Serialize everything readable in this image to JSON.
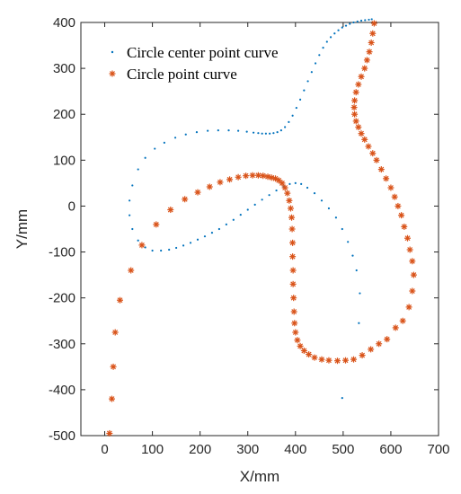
{
  "chart_data": {
    "type": "scatter",
    "xlabel": "X/mm",
    "ylabel": "Y/mm",
    "xlim": [
      -50,
      700
    ],
    "ylim": [
      -500,
      400
    ],
    "xticks": [
      0,
      100,
      200,
      300,
      400,
      500,
      600,
      700
    ],
    "yticks": [
      -500,
      -400,
      -300,
      -200,
      -100,
      0,
      100,
      200,
      300,
      400
    ],
    "grid": false,
    "legend_position": "top-left",
    "series": [
      {
        "name": "Circle center point curve",
        "color": "#0072BD",
        "marker": "dot",
        "points": [
          [
            498,
            -418
          ],
          [
            533,
            -255
          ],
          [
            535,
            -190
          ],
          [
            528,
            -140
          ],
          [
            520,
            -108
          ],
          [
            510,
            -78
          ],
          [
            498,
            -50
          ],
          [
            485,
            -25
          ],
          [
            470,
            -5
          ],
          [
            455,
            12
          ],
          [
            440,
            28
          ],
          [
            425,
            40
          ],
          [
            412,
            48
          ],
          [
            400,
            50
          ],
          [
            388,
            48
          ],
          [
            375,
            43
          ],
          [
            360,
            34
          ],
          [
            345,
            24
          ],
          [
            330,
            14
          ],
          [
            315,
            3
          ],
          [
            300,
            -8
          ],
          [
            285,
            -19
          ],
          [
            270,
            -30
          ],
          [
            255,
            -40
          ],
          [
            240,
            -50
          ],
          [
            225,
            -58
          ],
          [
            210,
            -66
          ],
          [
            195,
            -73
          ],
          [
            180,
            -80
          ],
          [
            165,
            -86
          ],
          [
            150,
            -91
          ],
          [
            135,
            -95
          ],
          [
            118,
            -97
          ],
          [
            100,
            -97
          ],
          [
            85,
            -90
          ],
          [
            70,
            -75
          ],
          [
            58,
            -50
          ],
          [
            52,
            -20
          ],
          [
            52,
            12
          ],
          [
            58,
            45
          ],
          [
            70,
            80
          ],
          [
            85,
            105
          ],
          [
            105,
            125
          ],
          [
            125,
            138
          ],
          [
            148,
            149
          ],
          [
            170,
            156
          ],
          [
            193,
            161
          ],
          [
            216,
            164
          ],
          [
            238,
            165
          ],
          [
            260,
            165
          ],
          [
            280,
            164
          ],
          [
            298,
            162
          ],
          [
            312,
            160
          ],
          [
            322,
            159
          ],
          [
            330,
            158
          ],
          [
            338,
            158
          ],
          [
            346,
            158
          ],
          [
            354,
            159
          ],
          [
            362,
            161
          ],
          [
            370,
            165
          ],
          [
            378,
            172
          ],
          [
            386,
            183
          ],
          [
            394,
            197
          ],
          [
            402,
            214
          ],
          [
            410,
            232
          ],
          [
            418,
            252
          ],
          [
            426,
            272
          ],
          [
            434,
            292
          ],
          [
            442,
            311
          ],
          [
            450,
            329
          ],
          [
            458,
            345
          ],
          [
            466,
            358
          ],
          [
            474,
            368
          ],
          [
            482,
            376
          ],
          [
            490,
            383
          ],
          [
            498,
            389
          ],
          [
            506,
            393
          ],
          [
            514,
            397
          ],
          [
            522,
            400
          ],
          [
            530,
            402
          ],
          [
            538,
            404
          ],
          [
            546,
            405
          ],
          [
            554,
            406
          ],
          [
            560,
            407
          ]
        ]
      },
      {
        "name": "Circle point curve",
        "color": "#D95319",
        "marker": "asterisk",
        "points": [
          [
            10,
            -495
          ],
          [
            15,
            -420
          ],
          [
            18,
            -350
          ],
          [
            22,
            -275
          ],
          [
            32,
            -205
          ],
          [
            55,
            -140
          ],
          [
            78,
            -85
          ],
          [
            108,
            -40
          ],
          [
            138,
            -8
          ],
          [
            168,
            15
          ],
          [
            195,
            30
          ],
          [
            220,
            42
          ],
          [
            242,
            52
          ],
          [
            262,
            58
          ],
          [
            280,
            63
          ],
          [
            296,
            66
          ],
          [
            310,
            67
          ],
          [
            322,
            67
          ],
          [
            332,
            66
          ],
          [
            342,
            64
          ],
          [
            350,
            62
          ],
          [
            358,
            60
          ],
          [
            365,
            56
          ],
          [
            372,
            50
          ],
          [
            378,
            40
          ],
          [
            383,
            28
          ],
          [
            387,
            12
          ],
          [
            390,
            -5
          ],
          [
            392,
            -25
          ],
          [
            393,
            -50
          ],
          [
            394,
            -80
          ],
          [
            394,
            -110
          ],
          [
            395,
            -140
          ],
          [
            395,
            -170
          ],
          [
            396,
            -200
          ],
          [
            397,
            -230
          ],
          [
            398,
            -255
          ],
          [
            400,
            -275
          ],
          [
            404,
            -292
          ],
          [
            410,
            -305
          ],
          [
            418,
            -315
          ],
          [
            428,
            -323
          ],
          [
            440,
            -330
          ],
          [
            455,
            -334
          ],
          [
            470,
            -336
          ],
          [
            488,
            -337
          ],
          [
            505,
            -336
          ],
          [
            522,
            -334
          ],
          [
            540,
            -325
          ],
          [
            558,
            -312
          ],
          [
            575,
            -300
          ],
          [
            592,
            -290
          ],
          [
            610,
            -265
          ],
          [
            625,
            -250
          ],
          [
            638,
            -220
          ],
          [
            645,
            -185
          ],
          [
            648,
            -150
          ],
          [
            645,
            -120
          ],
          [
            640,
            -95
          ],
          [
            635,
            -70
          ],
          [
            628,
            -45
          ],
          [
            622,
            -20
          ],
          [
            615,
            0
          ],
          [
            608,
            20
          ],
          [
            600,
            40
          ],
          [
            590,
            60
          ],
          [
            580,
            80
          ],
          [
            570,
            100
          ],
          [
            562,
            115
          ],
          [
            553,
            130
          ],
          [
            545,
            145
          ],
          [
            538,
            158
          ],
          [
            532,
            172
          ],
          [
            527,
            185
          ],
          [
            524,
            200
          ],
          [
            523,
            215
          ],
          [
            524,
            230
          ],
          [
            527,
            248
          ],
          [
            532,
            265
          ],
          [
            538,
            282
          ],
          [
            545,
            300
          ],
          [
            550,
            318
          ],
          [
            555,
            336
          ],
          [
            559,
            356
          ],
          [
            562,
            376
          ],
          [
            565,
            398
          ]
        ]
      }
    ]
  }
}
